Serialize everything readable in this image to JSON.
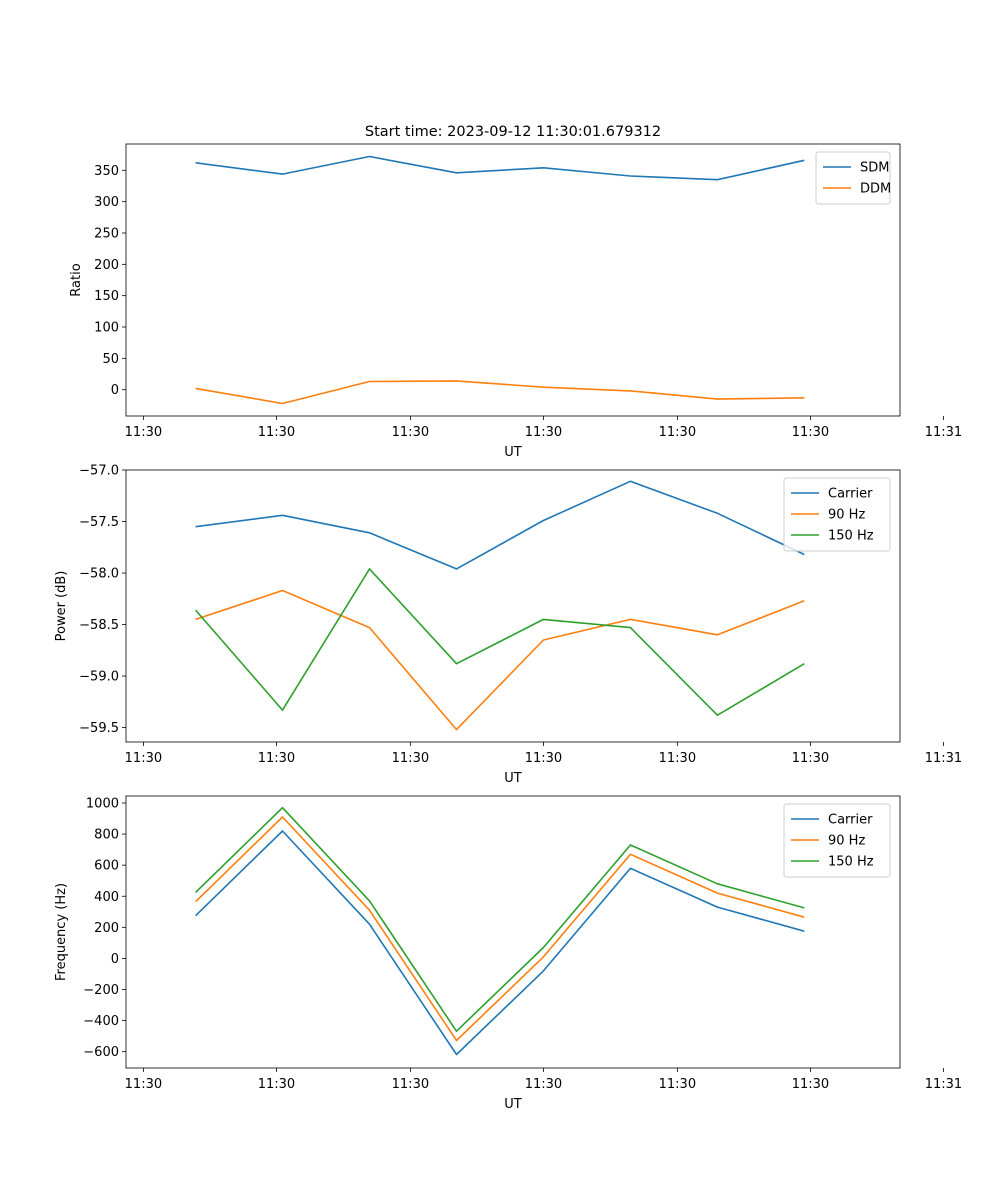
{
  "figure": {
    "title": "Start time: 2023-09-12 11:30:01.679312"
  },
  "chart_data": [
    {
      "type": "line",
      "title": "Start time: 2023-09-12 11:30:01.679312",
      "xlabel": "UT",
      "ylabel": "Ratio",
      "x": [
        1,
        2,
        3,
        4,
        5,
        6,
        7,
        8
      ],
      "xlim": [
        0.2,
        9.1
      ],
      "xticks": [
        0.4,
        1.93,
        3.47,
        5,
        6.54,
        8.07,
        9.6
      ],
      "xtick_labels": [
        "11:30",
        "11:30",
        "11:30",
        "11:30",
        "11:30",
        "11:30",
        "11:31"
      ],
      "ylim": [
        -42,
        392
      ],
      "yticks": [
        0,
        50,
        100,
        150,
        200,
        250,
        300,
        350
      ],
      "ytick_labels": [
        "0",
        "50",
        "100",
        "150",
        "200",
        "250",
        "300",
        "350"
      ],
      "legend": "top-right",
      "series": [
        {
          "name": "SDM",
          "color": "#1f77b4",
          "values": [
            362,
            344,
            372,
            346,
            354,
            341,
            335,
            366
          ]
        },
        {
          "name": "DDM",
          "color": "#ff7f0e",
          "values": [
            2,
            -22,
            13,
            14,
            4,
            -2,
            -15,
            -13
          ]
        }
      ]
    },
    {
      "type": "line",
      "title": "",
      "xlabel": "UT",
      "ylabel": "Power (dB)",
      "x": [
        1,
        2,
        3,
        4,
        5,
        6,
        7,
        8
      ],
      "xlim": [
        0.2,
        9.1
      ],
      "xticks": [
        0.4,
        1.93,
        3.47,
        5,
        6.54,
        8.07,
        9.6
      ],
      "xtick_labels": [
        "11:30",
        "11:30",
        "11:30",
        "11:30",
        "11:30",
        "11:30",
        "11:31"
      ],
      "ylim": [
        -59.64,
        -57.0
      ],
      "yticks": [
        -59.5,
        -59.0,
        -58.5,
        -58.0,
        -57.5,
        -57.0
      ],
      "ytick_labels": [
        "−59.5",
        "−59.0",
        "−58.5",
        "−58.0",
        "−57.5",
        "−57.0"
      ],
      "legend": "top-right",
      "series": [
        {
          "name": "Carrier",
          "color": "#1f77b4",
          "values": [
            -57.55,
            -57.44,
            -57.61,
            -57.96,
            -57.49,
            -57.11,
            -57.42,
            -57.82
          ]
        },
        {
          "name": "90 Hz",
          "color": "#ff7f0e",
          "values": [
            -58.45,
            -58.17,
            -58.53,
            -59.52,
            -58.65,
            -58.45,
            -58.6,
            -58.27
          ]
        },
        {
          "name": "150 Hz",
          "color": "#2ca02c",
          "values": [
            -58.36,
            -59.33,
            -57.96,
            -58.88,
            -58.45,
            -58.53,
            -59.38,
            -58.88
          ]
        }
      ]
    },
    {
      "type": "line",
      "title": "",
      "xlabel": "UT",
      "ylabel": "Frequency (Hz)",
      "x": [
        1,
        2,
        3,
        4,
        5,
        6,
        7,
        8
      ],
      "xlim": [
        0.2,
        9.1
      ],
      "xticks": [
        0.4,
        1.93,
        3.47,
        5,
        6.54,
        8.07,
        9.6
      ],
      "xtick_labels": [
        "11:30",
        "11:30",
        "11:30",
        "11:30",
        "11:30",
        "11:30",
        "11:31"
      ],
      "ylim": [
        -705,
        1045
      ],
      "yticks": [
        -600,
        -400,
        -200,
        0,
        200,
        400,
        600,
        800,
        1000
      ],
      "ytick_labels": [
        "−600",
        "−400",
        "−200",
        "0",
        "200",
        "400",
        "600",
        "800",
        "1000"
      ],
      "legend": "top-right",
      "series": [
        {
          "name": "Carrier",
          "color": "#1f77b4",
          "values": [
            275,
            820,
            220,
            -618,
            -80,
            580,
            330,
            175
          ]
        },
        {
          "name": "90 Hz",
          "color": "#ff7f0e",
          "values": [
            365,
            910,
            310,
            -528,
            10,
            670,
            420,
            265
          ]
        },
        {
          "name": "150 Hz",
          "color": "#2ca02c",
          "values": [
            425,
            970,
            370,
            -468,
            70,
            730,
            480,
            325
          ]
        }
      ]
    }
  ]
}
